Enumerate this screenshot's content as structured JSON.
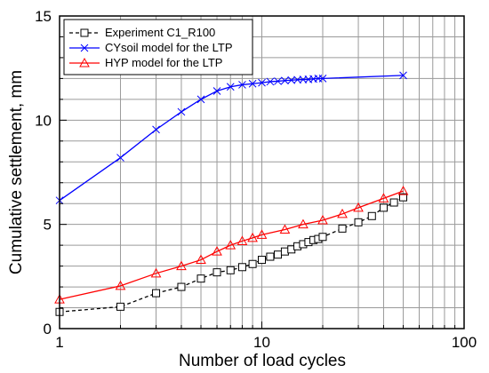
{
  "chart_data": {
    "type": "line",
    "xlabel": "Number of load cycles",
    "ylabel": "Cumulative settlement, mm",
    "xscale": "log",
    "xlim": [
      1,
      100
    ],
    "ylim": [
      0,
      15
    ],
    "xticks": [
      1,
      10,
      100
    ],
    "xtick_labels": [
      "1",
      "10",
      "100"
    ],
    "yticks": [
      0,
      5,
      10,
      15
    ],
    "ytick_labels": [
      "0",
      "5",
      "10",
      "15"
    ],
    "grid": true,
    "legend_position": "top-left",
    "series": [
      {
        "name": "Experiment C1_R100",
        "color": "#000000",
        "marker": "square",
        "line_style": "dashed",
        "x": [
          1,
          2,
          3,
          4,
          5,
          6,
          7,
          8,
          9,
          10,
          11,
          12,
          13,
          14,
          15,
          16,
          17,
          18,
          19,
          20,
          25,
          30,
          35,
          40,
          45,
          50
        ],
        "y": [
          0.8,
          1.05,
          1.7,
          2.0,
          2.4,
          2.7,
          2.8,
          2.95,
          3.1,
          3.3,
          3.45,
          3.55,
          3.7,
          3.8,
          3.95,
          4.05,
          4.15,
          4.25,
          4.3,
          4.4,
          4.8,
          5.1,
          5.4,
          5.8,
          6.05,
          6.3
        ]
      },
      {
        "name": "CYsoil model for the LTP",
        "color": "#0000ff",
        "marker": "x",
        "line_style": "solid",
        "x": [
          1,
          2,
          3,
          4,
          5,
          6,
          7,
          8,
          9,
          10,
          11,
          12,
          13,
          14,
          15,
          16,
          17,
          18,
          19,
          20,
          50
        ],
        "y": [
          6.15,
          8.2,
          9.55,
          10.4,
          11.0,
          11.4,
          11.6,
          11.7,
          11.75,
          11.8,
          11.85,
          11.87,
          11.9,
          11.92,
          11.94,
          11.95,
          11.96,
          11.98,
          12.0,
          12.0,
          12.15
        ]
      },
      {
        "name": "HYP model for the LTP",
        "color": "#ff0000",
        "marker": "triangle",
        "line_style": "solid",
        "x": [
          1,
          2,
          3,
          4,
          5,
          6,
          7,
          8,
          9,
          10,
          13,
          16,
          20,
          25,
          30,
          40,
          50
        ],
        "y": [
          1.4,
          2.05,
          2.65,
          3.0,
          3.3,
          3.7,
          4.0,
          4.2,
          4.35,
          4.5,
          4.75,
          5.0,
          5.2,
          5.5,
          5.8,
          6.25,
          6.6
        ]
      }
    ]
  }
}
